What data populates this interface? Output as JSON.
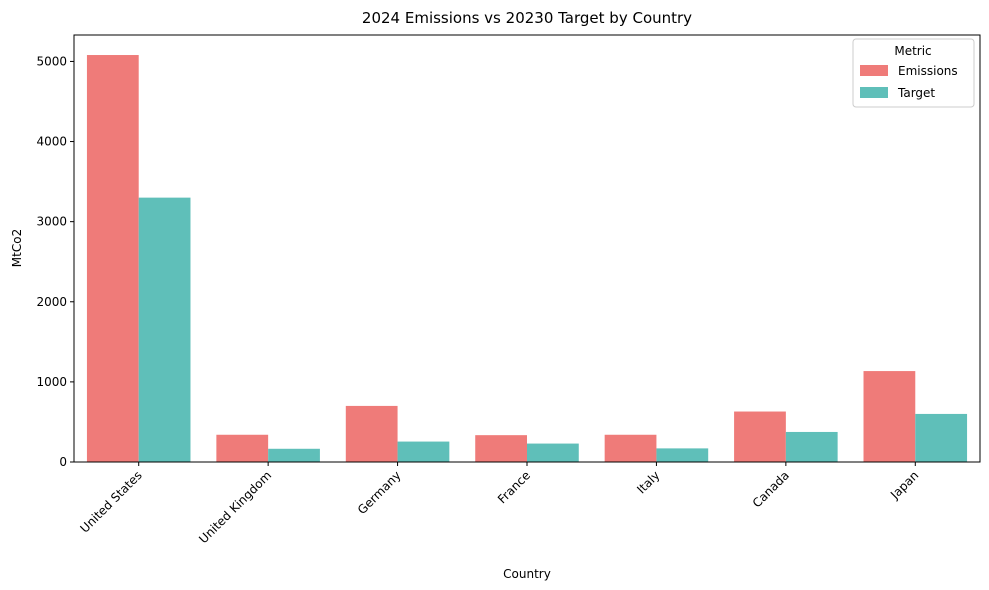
{
  "chart_data": {
    "type": "bar",
    "title": "2024 Emissions vs 20230 Target by Country",
    "xlabel": "Country",
    "ylabel": "MtCo2",
    "categories": [
      "United States",
      "United Kingdom",
      "Germany",
      "France",
      "Italy",
      "Canada",
      "Japan"
    ],
    "series": [
      {
        "name": "Emissions",
        "color": "#ef7b79",
        "values": [
          5080,
          340,
          700,
          335,
          340,
          630,
          1135
        ]
      },
      {
        "name": "Target",
        "color": "#5fbfb9",
        "values": [
          3300,
          165,
          255,
          230,
          170,
          375,
          600
        ]
      }
    ],
    "ylim": [
      0,
      5330
    ],
    "yticks": [
      0,
      1000,
      2000,
      3000,
      4000,
      5000
    ],
    "grid": false,
    "legend": {
      "title": "Metric",
      "placement": "top-right"
    }
  }
}
